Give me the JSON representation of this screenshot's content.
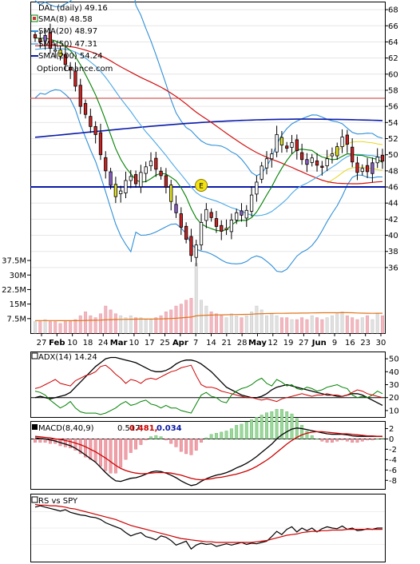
{
  "chart_data": [
    {
      "panel": "price",
      "type": "candlestick",
      "symbol_line": "DAL (daily) 49.16",
      "brand": "OptionChance.com",
      "legend": [
        {
          "label": "SMA(8) 48.58",
          "color": "#008000"
        },
        {
          "label": "SMA(20) 48.97",
          "color": "#2f8fd8"
        },
        {
          "label": "SMA(50) 47.31",
          "color": "#d01010"
        },
        {
          "label": "SMA(200) 54.24",
          "color": "#0a1aa8"
        }
      ],
      "ylim": [
        35,
        69
      ],
      "y_ticks": [
        "36",
        "38",
        "40",
        "42",
        "44",
        "46",
        "48",
        "50",
        "52",
        "54",
        "56",
        "58",
        "60",
        "62",
        "64",
        "66",
        "68"
      ],
      "x_labels": [
        "27",
        "Feb",
        "10",
        "18",
        "24",
        "Mar",
        "10",
        "17",
        "25",
        "Apr",
        "7",
        "14",
        "21",
        "28",
        "May",
        "12",
        "19",
        "27",
        "Jun",
        "9",
        "16",
        "23",
        "30"
      ],
      "earnings_marker": "E",
      "horizontal_lines": [
        {
          "value": 57,
          "color": "#cc3333"
        },
        {
          "value": 46,
          "color": "#0a1aa8"
        }
      ],
      "close": [
        64.5,
        64.0,
        64.8,
        63.2,
        63.0,
        62.2,
        61.2,
        60.5,
        58.5,
        56.0,
        55.0,
        53.5,
        52.5,
        50.0,
        48.0,
        46.2,
        44.8,
        45.5,
        46.8,
        47.3,
        46.4,
        47.8,
        48.5,
        49.2,
        48.2,
        47.4,
        46.0,
        44.2,
        42.8,
        41.0,
        39.5,
        37.5,
        38.8,
        41.6,
        43.2,
        42.2,
        41.1,
        40.5,
        40.7,
        41.9,
        42.8,
        42.5,
        43.1,
        45.0,
        46.6,
        48.6,
        49.5,
        50.1,
        52.5,
        51.2,
        50.8,
        51.5,
        50.5,
        49.4,
        48.8,
        49.6,
        48.7,
        48.5,
        49.5,
        50.1,
        51.0,
        52.2,
        51.3,
        49.1,
        47.8,
        48.3,
        47.9,
        49.0,
        49.7,
        49.2
      ],
      "volume_ylim": [
        0,
        40
      ],
      "volume_ticks": [
        "7.5M",
        "15M",
        "22.5M",
        "30M",
        "37.5M"
      ],
      "volume": [
        6,
        6,
        7,
        6,
        6,
        5,
        6,
        6,
        7,
        9,
        11,
        9,
        8,
        10,
        14,
        12,
        10,
        9,
        8,
        9,
        8,
        8,
        7,
        7,
        8,
        9,
        11,
        12,
        14,
        15,
        17,
        18,
        36,
        17,
        14,
        11,
        10,
        9,
        8,
        10,
        9,
        8,
        9,
        11,
        14,
        12,
        9,
        10,
        9,
        8,
        8,
        7,
        7,
        8,
        7,
        9,
        8,
        7,
        8,
        9,
        10,
        11,
        9,
        8,
        7,
        8,
        9,
        7,
        10,
        9
      ],
      "volume_avg_label": "volume average (orange)"
    },
    {
      "panel": "adx",
      "type": "line",
      "label": "ADX(14) 14.24",
      "ylim": [
        5,
        55
      ],
      "y_ticks": [
        "10",
        "20",
        "30",
        "40",
        "50"
      ],
      "ref_line": 20,
      "series": [
        {
          "name": "ADX",
          "color": "#000000",
          "values": [
            20,
            21,
            20,
            19,
            20,
            21,
            22,
            24,
            28,
            32,
            36,
            40,
            44,
            47,
            50,
            51,
            51,
            50,
            49,
            48,
            47,
            45,
            43,
            41,
            40,
            40,
            41,
            43,
            46,
            48,
            49,
            49,
            48,
            46,
            43,
            40,
            36,
            32,
            28,
            26,
            24,
            22,
            21,
            20,
            20,
            21,
            23,
            26,
            28,
            29,
            30,
            29,
            28,
            27,
            26,
            25,
            24,
            23,
            22,
            22,
            21,
            21,
            22,
            23,
            23,
            22,
            20,
            18,
            16,
            14
          ]
        },
        {
          "name": "+DI",
          "color": "#008000",
          "values": [
            25,
            24,
            22,
            18,
            15,
            12,
            14,
            17,
            12,
            9,
            8,
            8,
            8,
            7,
            8,
            10,
            12,
            15,
            17,
            14,
            15,
            17,
            18,
            15,
            14,
            12,
            14,
            12,
            12,
            10,
            9,
            8,
            15,
            22,
            24,
            21,
            20,
            17,
            16,
            22,
            25,
            27,
            28,
            30,
            33,
            35,
            31,
            29,
            34,
            32,
            29,
            30,
            27,
            26,
            28,
            27,
            25,
            26,
            28,
            29,
            30,
            28,
            27,
            22,
            20,
            21,
            20,
            22,
            25,
            23
          ]
        },
        {
          "name": "-DI",
          "color": "#cc0000",
          "values": [
            27,
            28,
            30,
            32,
            34,
            31,
            30,
            29,
            33,
            35,
            37,
            38,
            40,
            44,
            45,
            42,
            38,
            35,
            31,
            34,
            33,
            31,
            34,
            35,
            34,
            36,
            38,
            40,
            41,
            43,
            44,
            45,
            37,
            30,
            28,
            28,
            27,
            25,
            24,
            23,
            22,
            21,
            20,
            20,
            19,
            18,
            19,
            18,
            17,
            19,
            20,
            21,
            22,
            23,
            22,
            21,
            22,
            22,
            23,
            22,
            22,
            21,
            22,
            24,
            26,
            25,
            23,
            22,
            21,
            20
          ]
        }
      ]
    },
    {
      "panel": "macd",
      "type": "line+bar",
      "label": "MACD(8,40,9)",
      "values_text": [
        "0.517,",
        "0.481,",
        "0.034"
      ],
      "value_colors": [
        "#000000",
        "#cc0000",
        "#0a1aa8"
      ],
      "ylim": [
        -9.5,
        3
      ],
      "y_ticks": [
        "2",
        "0",
        "-2",
        "-4",
        "-6",
        "-8"
      ],
      "series": [
        {
          "name": "MACD",
          "color": "#000000",
          "values": [
            0.2,
            0.1,
            0.0,
            -0.2,
            -0.4,
            -0.7,
            -1.0,
            -1.3,
            -1.8,
            -2.4,
            -3.1,
            -3.8,
            -4.5,
            -5.5,
            -6.5,
            -7.4,
            -8.1,
            -8.2,
            -7.9,
            -7.6,
            -7.5,
            -7.2,
            -6.8,
            -6.4,
            -6.2,
            -6.3,
            -6.6,
            -7.0,
            -7.5,
            -8.1,
            -8.6,
            -9.0,
            -8.8,
            -8.2,
            -7.7,
            -7.3,
            -7.0,
            -6.8,
            -6.5,
            -6.1,
            -5.6,
            -5.2,
            -4.7,
            -4.1,
            -3.4,
            -2.6,
            -1.8,
            -1.0,
            0.0,
            0.8,
            1.4,
            1.9,
            2.1,
            2.0,
            1.8,
            1.6,
            1.4,
            1.2,
            1.0,
            0.9,
            0.9,
            0.9,
            0.8,
            0.6,
            0.5,
            0.5,
            0.5,
            0.5,
            0.5,
            0.52
          ]
        },
        {
          "name": "Signal",
          "color": "#cc0000",
          "values": [
            0.5,
            0.4,
            0.3,
            0.2,
            0.0,
            -0.1,
            -0.3,
            -0.5,
            -0.8,
            -1.1,
            -1.5,
            -2.0,
            -2.5,
            -3.1,
            -3.7,
            -4.4,
            -5.1,
            -5.7,
            -6.1,
            -6.4,
            -6.6,
            -6.7,
            -6.7,
            -6.6,
            -6.5,
            -6.5,
            -6.5,
            -6.6,
            -6.8,
            -7.0,
            -7.3,
            -7.6,
            -7.8,
            -7.9,
            -7.8,
            -7.7,
            -7.5,
            -7.4,
            -7.2,
            -7.0,
            -6.8,
            -6.5,
            -6.2,
            -5.8,
            -5.3,
            -4.7,
            -4.1,
            -3.4,
            -2.6,
            -1.8,
            -1.0,
            -0.3,
            0.3,
            0.8,
            1.1,
            1.3,
            1.4,
            1.4,
            1.3,
            1.2,
            1.1,
            1.0,
            1.0,
            0.9,
            0.8,
            0.7,
            0.6,
            0.6,
            0.5,
            0.48
          ]
        }
      ]
    },
    {
      "panel": "rs",
      "type": "line",
      "label": "RS vs SPY",
      "ylim": [
        0,
        100
      ],
      "series": [
        {
          "name": "RS",
          "color": "#000000",
          "values": [
            82,
            84,
            82,
            80,
            78,
            76,
            78,
            74,
            72,
            70,
            69,
            67,
            66,
            63,
            58,
            55,
            52,
            49,
            43,
            38,
            41,
            43,
            37,
            35,
            32,
            38,
            36,
            31,
            24,
            27,
            30,
            18,
            24,
            27,
            25,
            26,
            22,
            24,
            26,
            24,
            26,
            28,
            25,
            27,
            26,
            28,
            30,
            37,
            45,
            40,
            48,
            52,
            44,
            50,
            46,
            50,
            44,
            49,
            52,
            50,
            49,
            53,
            48,
            50,
            46,
            47,
            49,
            48,
            50,
            50
          ]
        },
        {
          "name": "RS average",
          "color": "#cc0000",
          "values": [
            86,
            85,
            85,
            84,
            84,
            83,
            82,
            80,
            79,
            77,
            75,
            73,
            71,
            69,
            67,
            65,
            63,
            60,
            57,
            54,
            52,
            50,
            48,
            46,
            44,
            42,
            40,
            38,
            36,
            34,
            33,
            32,
            31,
            30,
            29,
            29,
            28,
            28,
            28,
            28,
            28,
            28,
            28,
            28,
            29,
            30,
            31,
            33,
            35,
            37,
            39,
            40,
            41,
            43,
            44,
            45,
            45,
            46,
            46,
            47,
            47,
            47,
            48,
            48,
            48,
            48,
            48,
            48,
            48,
            48
          ]
        }
      ]
    }
  ]
}
